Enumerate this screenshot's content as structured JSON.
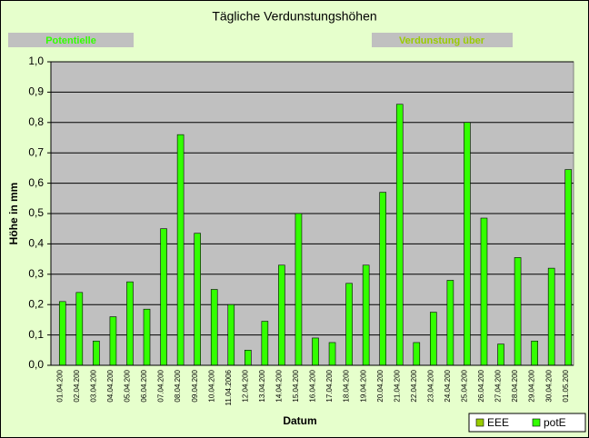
{
  "chart_data": {
    "type": "bar",
    "title": "Tägliche Verdunstungshöhen",
    "annotations": [
      "Potentielle",
      "Verdunstung über"
    ],
    "x_label": "Datum",
    "y_label": "Höhe in mm",
    "categories": [
      "01.04.200",
      "02.04.200",
      "03.04.200",
      "04.04.200",
      "05.04.200",
      "06.04.200",
      "07.04.200",
      "08.04.200",
      "09.04.200",
      "10.04.200",
      "11.04.2006",
      "12.04.200",
      "13.04.200",
      "14.04.200",
      "15.04.200",
      "16.04.200",
      "17.04.200",
      "18.04.200",
      "19.04.200",
      "20.04.200",
      "21.04.200",
      "22.04.200",
      "23.04.200",
      "24.04.200",
      "25.04.200",
      "26.04.200",
      "27.04.200",
      "28.04.200",
      "29.04.200",
      "30.04.200",
      "01.05.200"
    ],
    "series": [
      {
        "name": "EEE",
        "color": "#99cc00",
        "values": [
          null,
          null,
          null,
          null,
          null,
          null,
          null,
          null,
          null,
          null,
          null,
          null,
          null,
          null,
          null,
          null,
          null,
          null,
          null,
          null,
          null,
          null,
          null,
          null,
          null,
          null,
          null,
          null,
          null,
          null,
          null
        ]
      },
      {
        "name": "potE",
        "color": "#33ff00",
        "values": [
          0.21,
          0.24,
          0.08,
          0.16,
          0.275,
          0.185,
          0.45,
          0.76,
          0.435,
          0.25,
          0.2,
          0.05,
          0.145,
          0.33,
          0.5,
          0.09,
          0.075,
          0.27,
          0.33,
          0.57,
          0.86,
          0.075,
          0.175,
          0.28,
          0.8,
          0.485,
          0.07,
          0.355,
          0.08,
          0.32,
          0.645
        ]
      }
    ],
    "ylim": [
      0,
      1
    ],
    "yticks": [
      {
        "value": 0,
        "label": "0,0"
      },
      {
        "value": 0.1,
        "label": "0,1"
      },
      {
        "value": 0.2,
        "label": "0,2"
      },
      {
        "value": 0.3,
        "label": "0,3"
      },
      {
        "value": 0.4,
        "label": "0,4"
      },
      {
        "value": 0.5,
        "label": "0,5"
      },
      {
        "value": 0.6,
        "label": "0,6"
      },
      {
        "value": 0.7,
        "label": "0,7"
      },
      {
        "value": 0.8,
        "label": "0,8"
      },
      {
        "value": 0.9,
        "label": "0,9"
      },
      {
        "value": 1,
        "label": "1,0"
      }
    ],
    "grid": true,
    "legend": "bottom-right"
  }
}
